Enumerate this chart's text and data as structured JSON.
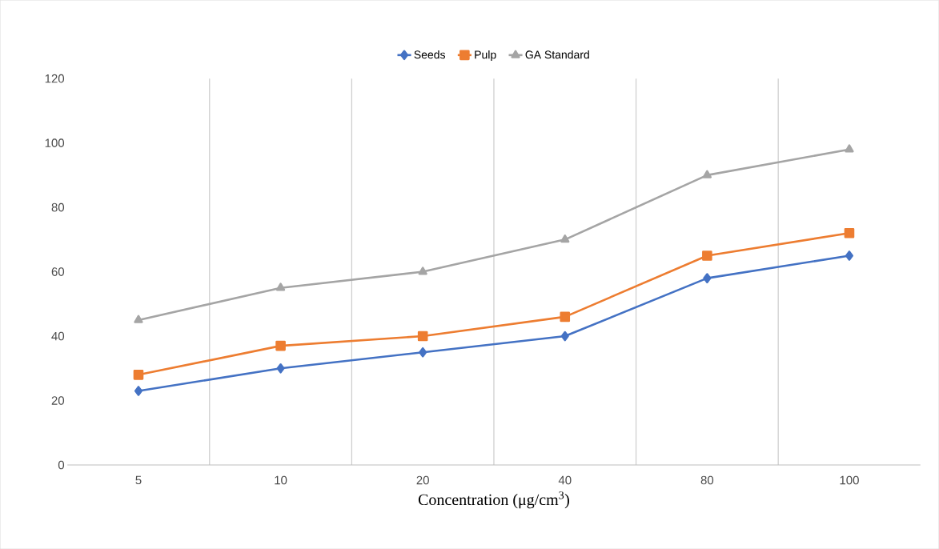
{
  "chart_data": {
    "type": "line",
    "xlabel": "Concentration (μg/cm$^{3}$)",
    "categories": [
      "5",
      "10",
      "20",
      "40",
      "80",
      "100"
    ],
    "series": [
      {
        "name": "Seeds",
        "color": "#4472c4",
        "marker": "diamond",
        "values": [
          23,
          30,
          35,
          40,
          58,
          65
        ]
      },
      {
        "name": "Pulp",
        "color": "#ed7d31",
        "marker": "square",
        "values": [
          28,
          37,
          40,
          46,
          65,
          72
        ]
      },
      {
        "name": "GA Standard",
        "color": "#a5a5a5",
        "marker": "triangle",
        "values": [
          45,
          55,
          60,
          70,
          90,
          98
        ]
      }
    ],
    "ylim": [
      0,
      120
    ],
    "yticks": [
      0,
      20,
      40,
      60,
      80,
      100,
      120
    ],
    "grid": "x",
    "legend": "top",
    "line_style": "solid"
  }
}
